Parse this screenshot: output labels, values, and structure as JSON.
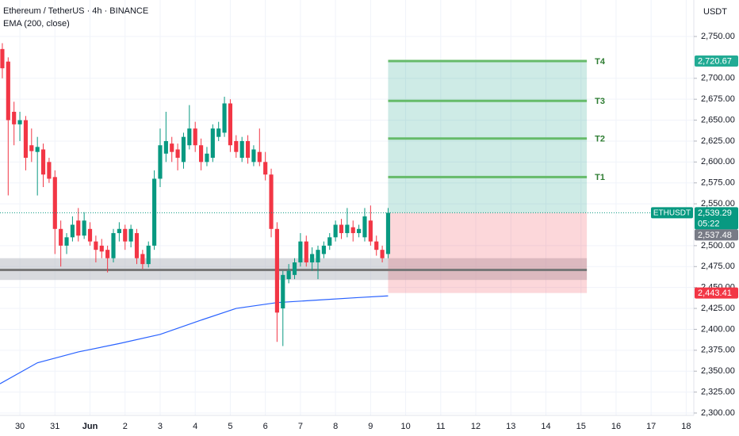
{
  "chart_data": {
    "type": "candlestick",
    "title": "Ethereum / TetherUS · 4h · BINANCE",
    "indicator": "EMA (200, close)",
    "currency": "USDT",
    "up_color": "#089981",
    "down_color": "#f23645",
    "grid": true,
    "xlim": [
      -3.4,
      115.3
    ],
    "ylim": [
      2296.2,
      2793.6
    ],
    "xticks": [
      {
        "value": 0,
        "label": "30"
      },
      {
        "value": 6,
        "label": "31"
      },
      {
        "value": 12,
        "label": "Jun"
      },
      {
        "value": 18,
        "label": "2"
      },
      {
        "value": 24,
        "label": "3"
      },
      {
        "value": 30,
        "label": "4"
      },
      {
        "value": 36,
        "label": "5"
      },
      {
        "value": 42,
        "label": "6"
      },
      {
        "value": 48,
        "label": "7"
      },
      {
        "value": 54,
        "label": "8"
      },
      {
        "value": 60,
        "label": "9"
      },
      {
        "value": 66,
        "label": "10"
      },
      {
        "value": 72,
        "label": "11"
      },
      {
        "value": 78,
        "label": "12"
      },
      {
        "value": 84,
        "label": "13"
      },
      {
        "value": 90,
        "label": "14"
      },
      {
        "value": 96,
        "label": "15"
      },
      {
        "value": 102,
        "label": "16"
      },
      {
        "value": 108,
        "label": "17"
      },
      {
        "value": 114,
        "label": "18"
      }
    ],
    "yticks": [
      {
        "value": 2300,
        "label": "2,300.00"
      },
      {
        "value": 2325,
        "label": "2,325.00"
      },
      {
        "value": 2350,
        "label": "2,350.00"
      },
      {
        "value": 2375,
        "label": "2,375.00"
      },
      {
        "value": 2400,
        "label": "2,400.00"
      },
      {
        "value": 2425,
        "label": "2,425.00"
      },
      {
        "value": 2450,
        "label": "2,450.00"
      },
      {
        "value": 2475,
        "label": "2,475.00"
      },
      {
        "value": 2500,
        "label": "2,500.00"
      },
      {
        "value": 2550,
        "label": "2,550.00"
      },
      {
        "value": 2575,
        "label": "2,575.00"
      },
      {
        "value": 2600,
        "label": "2,600.00"
      },
      {
        "value": 2625,
        "label": "2,625.00"
      },
      {
        "value": 2650,
        "label": "2,650.00"
      },
      {
        "value": 2675,
        "label": "2,675.00"
      },
      {
        "value": 2700,
        "label": "2,700.00"
      },
      {
        "value": 2750,
        "label": "2,750.00"
      }
    ],
    "candles": {
      "x": [
        -3,
        -2,
        -1,
        0,
        1,
        2,
        3,
        4,
        5,
        6,
        7,
        8,
        9,
        10,
        11,
        12,
        13,
        14,
        15,
        16,
        17,
        18,
        19,
        20,
        21,
        22,
        23,
        24,
        25,
        26,
        27,
        28,
        29,
        30,
        31,
        32,
        33,
        34,
        35,
        36,
        37,
        38,
        39,
        40,
        41,
        42,
        43,
        44,
        45,
        46,
        47,
        48,
        49,
        50,
        51,
        52,
        53,
        54,
        55,
        56,
        57,
        58,
        59,
        60,
        61,
        62,
        63
      ],
      "open": [
        2735,
        2720,
        2660,
        2645,
        2650,
        2620,
        2612,
        2615,
        2600,
        2582,
        2520,
        2500,
        2510,
        2530,
        2512,
        2520,
        2505,
        2500,
        2495,
        2485,
        2515,
        2520,
        2505,
        2515,
        2490,
        2478,
        2500,
        2580,
        2610,
        2622,
        2615,
        2600,
        2620,
        2640,
        2620,
        2600,
        2605,
        2630,
        2635,
        2670,
        2625,
        2605,
        2625,
        2600,
        2612,
        2600,
        2585,
        2520,
        2425,
        2460,
        2465,
        2480,
        2505,
        2480,
        2480,
        2490,
        2500,
        2510,
        2525,
        2515,
        2522,
        2515,
        2510,
        2530,
        2505,
        2495,
        2490
      ],
      "high": [
        2742,
        2725,
        2672,
        2660,
        2655,
        2640,
        2630,
        2622,
        2605,
        2590,
        2530,
        2515,
        2535,
        2545,
        2540,
        2528,
        2512,
        2508,
        2500,
        2520,
        2528,
        2525,
        2525,
        2520,
        2495,
        2505,
        2590,
        2640,
        2660,
        2630,
        2622,
        2635,
        2668,
        2648,
        2628,
        2618,
        2645,
        2648,
        2678,
        2675,
        2632,
        2630,
        2632,
        2620,
        2640,
        2612,
        2592,
        2528,
        2470,
        2478,
        2485,
        2515,
        2512,
        2498,
        2500,
        2505,
        2515,
        2530,
        2532,
        2545,
        2530,
        2525,
        2545,
        2548,
        2512,
        2500,
        2545
      ],
      "low": [
        2700,
        2560,
        2620,
        2625,
        2590,
        2600,
        2560,
        2570,
        2575,
        2490,
        2475,
        2490,
        2505,
        2505,
        2508,
        2500,
        2480,
        2485,
        2468,
        2480,
        2505,
        2495,
        2498,
        2478,
        2472,
        2474,
        2495,
        2570,
        2600,
        2600,
        2590,
        2592,
        2615,
        2612,
        2590,
        2595,
        2600,
        2625,
        2630,
        2612,
        2605,
        2600,
        2598,
        2595,
        2595,
        2578,
        2510,
        2385,
        2380,
        2455,
        2460,
        2475,
        2475,
        2470,
        2460,
        2485,
        2495,
        2505,
        2508,
        2510,
        2505,
        2510,
        2505,
        2500,
        2488,
        2480,
        2485
      ],
      "close": [
        2712,
        2650,
        2645,
        2650,
        2605,
        2613,
        2618,
        2585,
        2580,
        2520,
        2500,
        2510,
        2525,
        2512,
        2530,
        2505,
        2495,
        2493,
        2485,
        2515,
        2520,
        2505,
        2520,
        2485,
        2478,
        2500,
        2580,
        2620,
        2625,
        2612,
        2605,
        2630,
        2640,
        2620,
        2600,
        2610,
        2640,
        2640,
        2670,
        2620,
        2612,
        2625,
        2605,
        2615,
        2600,
        2585,
        2520,
        2420,
        2465,
        2470,
        2480,
        2505,
        2480,
        2490,
        2495,
        2500,
        2510,
        2525,
        2515,
        2525,
        2515,
        2520,
        2535,
        2505,
        2495,
        2485,
        2539.29
      ]
    },
    "ema": {
      "color": "#2962ff",
      "x": [
        -3.4,
        3,
        10,
        17,
        24,
        31,
        37,
        44,
        51,
        58,
        63
      ],
      "values": [
        2335,
        2360,
        2373,
        2383,
        2394,
        2411,
        2425,
        2432,
        2435,
        2438,
        2440
      ]
    },
    "support_zone": [
      2459,
      2485
    ],
    "support_line": 2471,
    "position": {
      "x_start": 63,
      "x_end": 97,
      "entry": 2539.29,
      "stop": 2443.41,
      "targets": [
        {
          "name": "T1",
          "value": 2582
        },
        {
          "name": "T2",
          "value": 2628
        },
        {
          "name": "T3",
          "value": 2673
        },
        {
          "name": "T4",
          "value": 2720.67
        }
      ]
    },
    "symbol": "ETHUSDT",
    "countdown": "05:22",
    "price_tags": [
      {
        "value": 2720.67,
        "label": "2,720.67",
        "color": "#22ab94"
      },
      {
        "value": 2539.29,
        "label": "2,539.29",
        "color": "#089981"
      },
      {
        "value": 2537.48,
        "label": "2,537.48",
        "color": "#787b86"
      },
      {
        "value": 2443.41,
        "label": "2,443.41",
        "color": "#f23645"
      }
    ]
  }
}
